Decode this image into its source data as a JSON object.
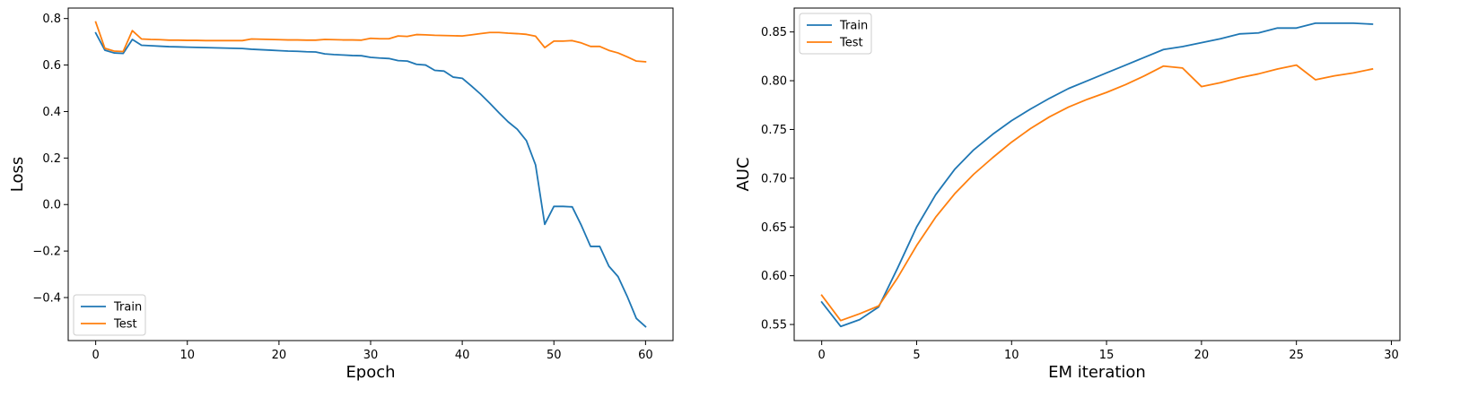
{
  "chart_data": [
    {
      "type": "line",
      "xlabel": "Epoch",
      "ylabel": "Loss",
      "xlim": [
        -3,
        63
      ],
      "ylim": [
        -0.585,
        0.845
      ],
      "xticks": [
        0,
        10,
        20,
        30,
        40,
        50,
        60
      ],
      "yticks": [
        -0.4,
        -0.2,
        0.0,
        0.2,
        0.4,
        0.6,
        0.8
      ],
      "ytick_labels": [
        "−0.4",
        "−0.2",
        "0.0",
        "0.2",
        "0.4",
        "0.6",
        "0.8"
      ],
      "legend": "lower-left",
      "grid": false,
      "x": [
        0,
        1,
        2,
        3,
        4,
        5,
        6,
        7,
        8,
        9,
        10,
        11,
        12,
        13,
        14,
        15,
        16,
        17,
        18,
        19,
        20,
        21,
        22,
        23,
        24,
        25,
        26,
        27,
        28,
        29,
        30,
        31,
        32,
        33,
        34,
        35,
        36,
        37,
        38,
        39,
        40,
        41,
        42,
        43,
        44,
        45,
        46,
        47,
        48,
        49,
        50,
        51,
        52,
        53,
        54,
        55,
        56,
        57,
        58,
        59,
        60
      ],
      "series": [
        {
          "name": "Train",
          "color": "#1f77b4",
          "values": [
            0.738,
            0.664,
            0.652,
            0.65,
            0.71,
            0.685,
            0.683,
            0.681,
            0.679,
            0.678,
            0.677,
            0.676,
            0.675,
            0.674,
            0.673,
            0.672,
            0.671,
            0.668,
            0.666,
            0.664,
            0.662,
            0.66,
            0.659,
            0.657,
            0.656,
            0.648,
            0.645,
            0.643,
            0.641,
            0.64,
            0.633,
            0.63,
            0.628,
            0.619,
            0.617,
            0.603,
            0.6,
            0.577,
            0.574,
            0.548,
            0.543,
            0.51,
            0.475,
            0.436,
            0.395,
            0.356,
            0.324,
            0.275,
            0.17,
            -0.085,
            -0.008,
            -0.008,
            -0.01,
            -0.09,
            -0.18,
            -0.18,
            -0.265,
            -0.31,
            -0.395,
            -0.49,
            -0.525
          ]
        },
        {
          "name": "Test",
          "color": "#ff7f0e",
          "values": [
            0.785,
            0.672,
            0.66,
            0.658,
            0.748,
            0.712,
            0.71,
            0.709,
            0.707,
            0.707,
            0.706,
            0.706,
            0.705,
            0.705,
            0.705,
            0.705,
            0.705,
            0.712,
            0.711,
            0.71,
            0.709,
            0.708,
            0.708,
            0.707,
            0.707,
            0.71,
            0.709,
            0.708,
            0.708,
            0.707,
            0.715,
            0.713,
            0.713,
            0.725,
            0.723,
            0.731,
            0.73,
            0.728,
            0.727,
            0.726,
            0.725,
            0.73,
            0.735,
            0.74,
            0.74,
            0.737,
            0.735,
            0.732,
            0.724,
            0.675,
            0.703,
            0.703,
            0.705,
            0.695,
            0.68,
            0.68,
            0.663,
            0.652,
            0.635,
            0.617,
            0.614
          ]
        }
      ]
    },
    {
      "type": "line",
      "xlabel": "EM iteration",
      "ylabel": "AUC",
      "xlim": [
        -1.45,
        30.45
      ],
      "ylim": [
        0.5335,
        0.8745
      ],
      "xticks": [
        0,
        5,
        10,
        15,
        20,
        25,
        30
      ],
      "yticks": [
        0.55,
        0.6,
        0.65,
        0.7,
        0.75,
        0.8,
        0.85
      ],
      "ytick_labels": [
        "0.55",
        "0.60",
        "0.65",
        "0.70",
        "0.75",
        "0.80",
        "0.85"
      ],
      "legend": "upper-left",
      "grid": false,
      "x": [
        0,
        1,
        2,
        3,
        4,
        5,
        6,
        7,
        8,
        9,
        10,
        11,
        12,
        13,
        14,
        15,
        16,
        17,
        18,
        19,
        20,
        21,
        22,
        23,
        24,
        25,
        26,
        27,
        28,
        29
      ],
      "series": [
        {
          "name": "Train",
          "color": "#1f77b4",
          "values": [
            0.573,
            0.548,
            0.555,
            0.568,
            0.608,
            0.65,
            0.683,
            0.709,
            0.729,
            0.745,
            0.759,
            0.771,
            0.782,
            0.792,
            0.8,
            0.808,
            0.816,
            0.824,
            0.832,
            0.835,
            0.839,
            0.843,
            0.848,
            0.849,
            0.854,
            0.854,
            0.859,
            0.859,
            0.859,
            0.858
          ]
        },
        {
          "name": "Test",
          "color": "#ff7f0e",
          "values": [
            0.58,
            0.554,
            0.561,
            0.569,
            0.598,
            0.631,
            0.66,
            0.684,
            0.704,
            0.721,
            0.737,
            0.751,
            0.763,
            0.773,
            0.781,
            0.788,
            0.796,
            0.805,
            0.815,
            0.813,
            0.794,
            0.798,
            0.803,
            0.807,
            0.812,
            0.816,
            0.801,
            0.805,
            0.808,
            0.812
          ]
        }
      ]
    }
  ]
}
